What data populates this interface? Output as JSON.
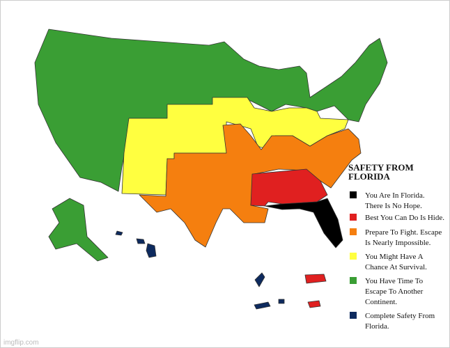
{
  "title": [
    "SAFETY FROM",
    "FLORIDA"
  ],
  "legend": [
    {
      "color": "#000000",
      "lines": [
        "You Are In Florida.",
        "There Is No Hope."
      ]
    },
    {
      "color": "#e02020",
      "lines": [
        "Best You Can Do Is Hide."
      ]
    },
    {
      "color": "#f57f0f",
      "lines": [
        "Prepare To Fight. Escape",
        "Is Nearly Impossible."
      ]
    },
    {
      "color": "#ffff40",
      "lines": [
        "You Might Have A",
        "Chance At Survival."
      ]
    },
    {
      "color": "#3a9e34",
      "lines": [
        "You Have Time To",
        "Escape To Another",
        "Continent."
      ]
    },
    {
      "color": "#0d2a5e",
      "lines": [
        "Complete Safety From",
        "Florida."
      ]
    }
  ],
  "watermark": "imgflip.com"
}
